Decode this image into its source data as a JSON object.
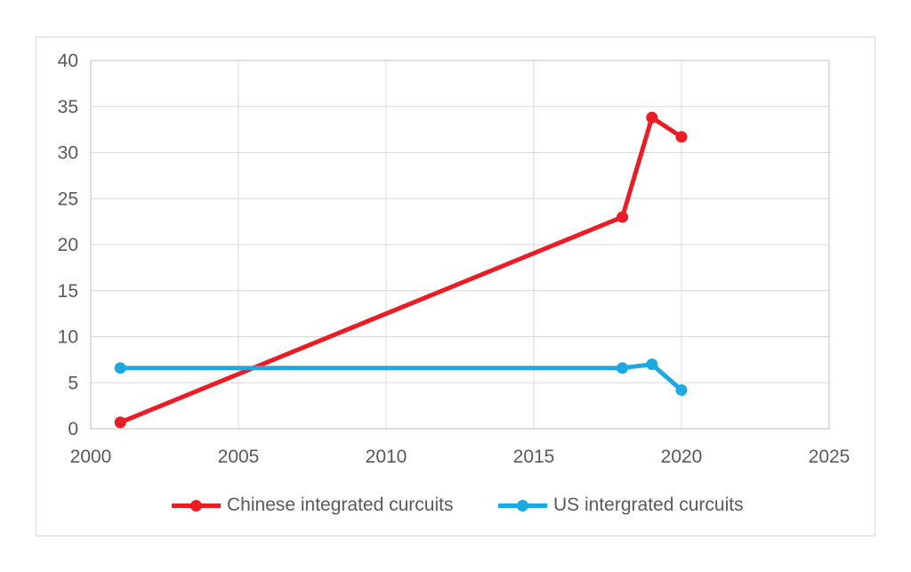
{
  "figure": {
    "background": "#ffffff",
    "frame_border_color": "#d9d9d9"
  },
  "chart_data": {
    "type": "line",
    "title": "",
    "xlabel": "",
    "ylabel": "",
    "xlim": [
      2000,
      2025
    ],
    "ylim": [
      0,
      40
    ],
    "x_ticks": [
      2000,
      2005,
      2010,
      2015,
      2020,
      2025
    ],
    "y_ticks": [
      0,
      5,
      10,
      15,
      20,
      25,
      30,
      35,
      40
    ],
    "grid": true,
    "gridline_color": "#d9d9d9",
    "plot_border_color": "#bfbfbf",
    "tick_label_color": "#595959",
    "legend_position": "bottom-center",
    "series": [
      {
        "name": "Chinese integrated curcuits",
        "color": "#ed1c24",
        "marker": "circle",
        "x": [
          2001,
          2018,
          2019,
          2020
        ],
        "y": [
          0.7,
          23,
          33.8,
          31.7
        ]
      },
      {
        "name": "US intergrated curcuits",
        "color": "#1ba9e3",
        "marker": "circle",
        "x": [
          2001,
          2018,
          2019,
          2020
        ],
        "y": [
          6.6,
          6.6,
          7.0,
          4.2
        ]
      }
    ]
  }
}
